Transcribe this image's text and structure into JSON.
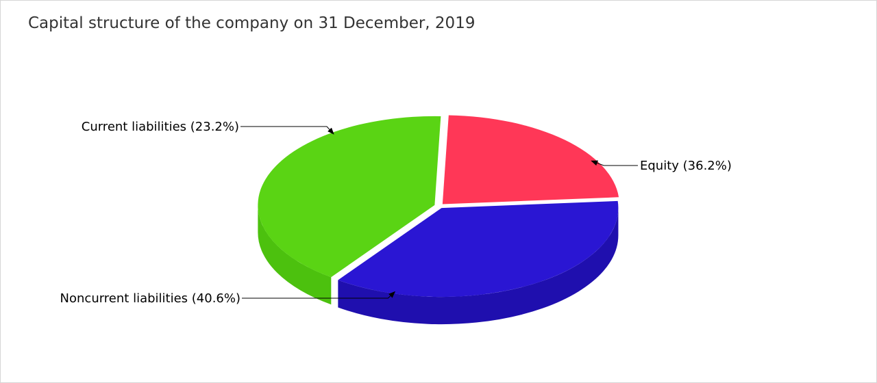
{
  "chart_data": {
    "type": "pie",
    "title": "Capital structure of the company on 31 December, 2019",
    "categories": [
      "Current liabilities",
      "Equity",
      "Noncurrent liabilities"
    ],
    "values": [
      23.2,
      36.2,
      40.6
    ],
    "labels": [
      "Current liabilities (23.2%)",
      "Equity (36.2%)",
      "Noncurrent liabilities (40.6%)"
    ],
    "colors": [
      "#ff3757",
      "#2a16d3",
      "#5ad414"
    ],
    "side_colors": [
      "#d42a45",
      "#1f0fae",
      "#4cc10e"
    ],
    "style": "3d-exploded",
    "legend": "none"
  }
}
